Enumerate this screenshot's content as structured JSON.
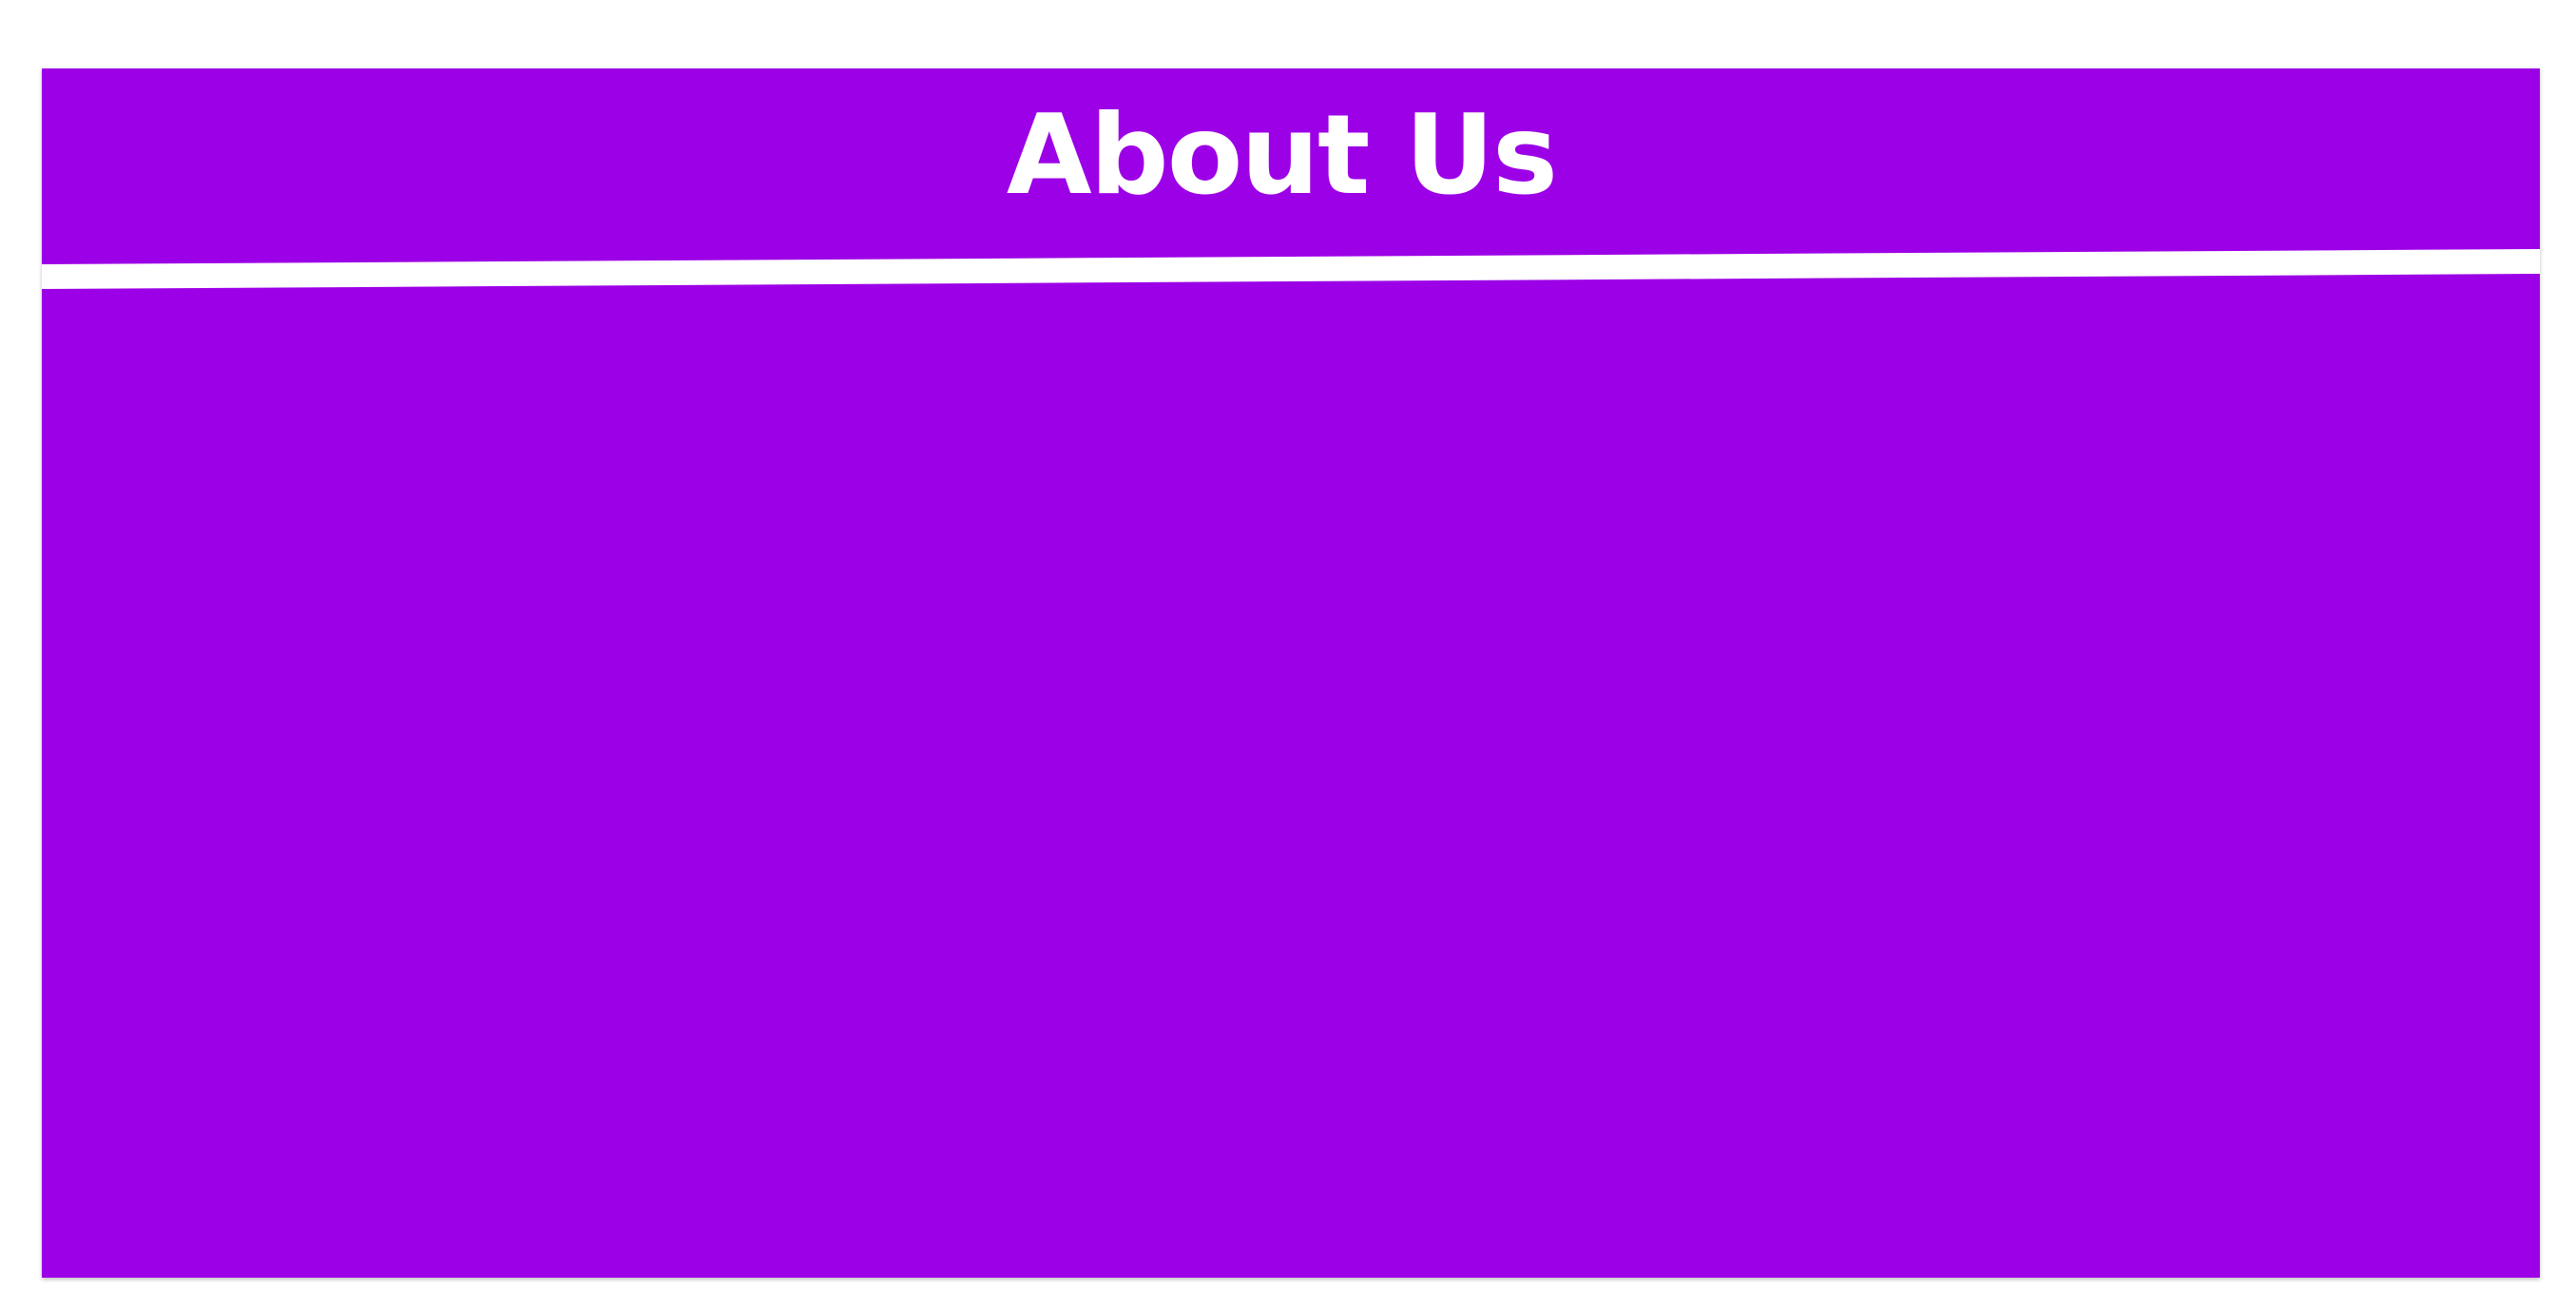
{
  "page": {
    "title": "About Us",
    "background_color": "#9c00e6",
    "divider_color": "#ffffff",
    "text_color": "#ffffff"
  }
}
